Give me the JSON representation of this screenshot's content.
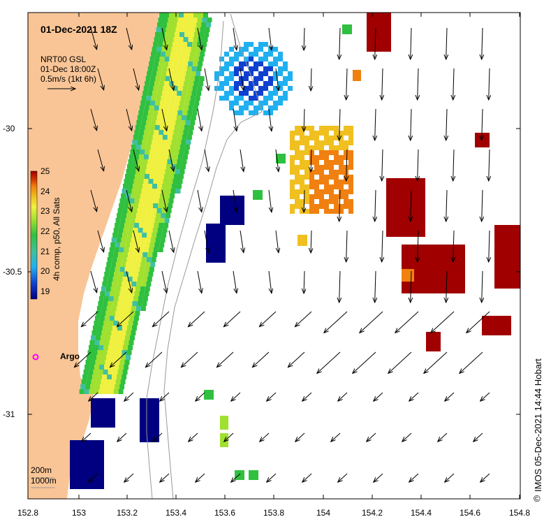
{
  "header": {
    "date_title": "01-Dec-2021 18Z",
    "product": "NRT00 GSL",
    "product_time": "01-Dec 18:00Z",
    "scale_label": "0.5m/s (1kt 6h)"
  },
  "colorbar": {
    "label": "4h comp, p50, All Sats",
    "ticks": [
      "25",
      "24",
      "23",
      "22",
      "21",
      "20",
      "19"
    ],
    "stops": [
      "#ffffff",
      "#000080",
      "#1040d0",
      "#20b0f0",
      "#40c0a0",
      "#30c040",
      "#a0e030",
      "#f0f040",
      "#f0c020",
      "#f08010",
      "#d03000",
      "#a00000"
    ]
  },
  "axes": {
    "x_ticks": [
      "152.8",
      "153",
      "153.2",
      "153.4",
      "153.6",
      "153.8",
      "154",
      "154.2",
      "154.4",
      "154.6",
      "154.8"
    ],
    "y_ticks": [
      "-30",
      "-30.5",
      "-31"
    ]
  },
  "annotations": {
    "argo_label": "Argo",
    "depth_200": "200m",
    "depth_1000": "1000m",
    "credit": "IMOS 05-Dec-2021 14:44 Hobart",
    "copyright_symbol": "©"
  },
  "colors": {
    "land": "#f9c596",
    "argo": "#ff00ff"
  }
}
